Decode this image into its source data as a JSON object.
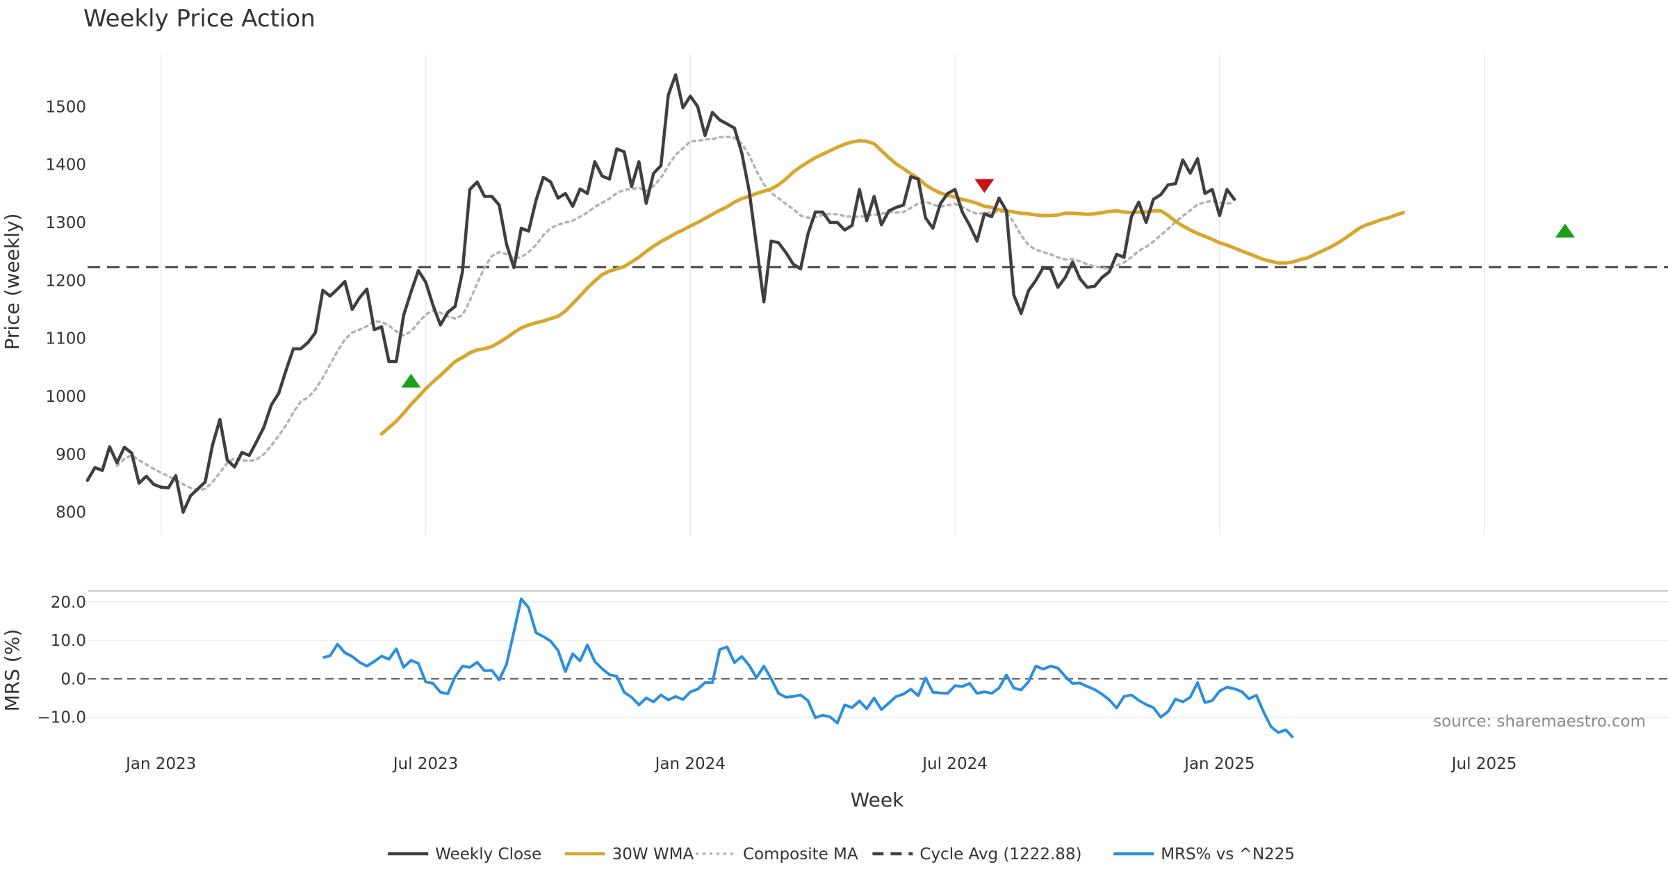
{
  "chart_data": {
    "type": "line",
    "title": "Weekly Price Action",
    "source_note": "source: sharemaestro.com",
    "xlabel": "Week",
    "x_ticks": [
      "Jan 2023",
      "Jul 2023",
      "Jan 2024",
      "Jul 2024",
      "Jan 2025",
      "Jul 2025"
    ],
    "x_tick_weeks": [
      10,
      46,
      82,
      118,
      154,
      190
    ],
    "n_weeks": 216,
    "price_panel": {
      "ylabel": "Price (weekly)",
      "ylim": [
        760,
        1600
      ],
      "yticks": [
        800,
        900,
        1000,
        1100,
        1200,
        1300,
        1400,
        1500
      ],
      "grid": true,
      "series": [
        {
          "name": "Weekly Close",
          "color": "#3f3f3f",
          "start_week": 0,
          "values": [
            855,
            877,
            872,
            913,
            885,
            912,
            902,
            850,
            862,
            848,
            843,
            842,
            863,
            800,
            828,
            840,
            852,
            916,
            960,
            890,
            878,
            903,
            898,
            922,
            947,
            985,
            1005,
            1045,
            1082,
            1082,
            1093,
            1110,
            1183,
            1173,
            1185,
            1198,
            1150,
            1170,
            1185,
            1115,
            1120,
            1060,
            1060,
            1140,
            1180,
            1217,
            1197,
            1157,
            1123,
            1145,
            1155,
            1215,
            1357,
            1370,
            1345,
            1345,
            1330,
            1262,
            1222,
            1290,
            1285,
            1338,
            1378,
            1370,
            1342,
            1350,
            1328,
            1358,
            1350,
            1405,
            1380,
            1375,
            1427,
            1422,
            1362,
            1405,
            1333,
            1385,
            1398,
            1520,
            1555,
            1498,
            1518,
            1500,
            1450,
            1490,
            1477,
            1470,
            1463,
            1420,
            1355,
            1260,
            1163,
            1268,
            1265,
            1248,
            1228,
            1220,
            1280,
            1318,
            1318,
            1300,
            1300,
            1287,
            1295,
            1357,
            1303,
            1345,
            1296,
            1320,
            1326,
            1330,
            1379,
            1375,
            1308,
            1290,
            1332,
            1350,
            1357,
            1318,
            1295,
            1268,
            1315,
            1310,
            1342,
            1320,
            1175,
            1143,
            1182,
            1200,
            1222,
            1220,
            1188,
            1205,
            1232,
            1203,
            1188,
            1190,
            1205,
            1215,
            1245,
            1240,
            1310,
            1335,
            1300,
            1340,
            1348,
            1365,
            1367,
            1408,
            1385,
            1410,
            1350,
            1357,
            1312,
            1357,
            1340
          ]
        },
        {
          "name": "30W WMA",
          "color": "#d9a52c",
          "start_week": 40,
          "values": [
            935,
            946,
            957,
            971,
            986,
            999,
            1013,
            1025,
            1036,
            1048,
            1060,
            1067,
            1075,
            1080,
            1082,
            1086,
            1093,
            1101,
            1110,
            1118,
            1123,
            1127,
            1130,
            1134,
            1138,
            1147,
            1160,
            1173,
            1187,
            1199,
            1210,
            1216,
            1220,
            1224,
            1232,
            1240,
            1250,
            1259,
            1267,
            1274,
            1281,
            1287,
            1294,
            1300,
            1307,
            1314,
            1321,
            1327,
            1335,
            1341,
            1345,
            1350,
            1354,
            1358,
            1365,
            1375,
            1387,
            1396,
            1404,
            1412,
            1418,
            1424,
            1430,
            1435,
            1439,
            1441,
            1440,
            1436,
            1424,
            1412,
            1401,
            1393,
            1384,
            1376,
            1365,
            1357,
            1351,
            1347,
            1344,
            1340,
            1337,
            1333,
            1328,
            1326,
            1322,
            1320,
            1318,
            1316,
            1315,
            1313,
            1312,
            1312,
            1313,
            1316,
            1316,
            1315,
            1314,
            1315,
            1317,
            1319,
            1320,
            1318,
            1317,
            1318,
            1318,
            1320,
            1320,
            1312,
            1302,
            1294,
            1287,
            1281,
            1276,
            1271,
            1265,
            1261,
            1256,
            1251,
            1246,
            1241,
            1236,
            1233,
            1230,
            1230,
            1232,
            1236,
            1239,
            1245,
            1251,
            1257,
            1264,
            1272,
            1281,
            1290,
            1296,
            1300,
            1305,
            1308,
            1313,
            1317
          ]
        },
        {
          "name": "Composite MA",
          "color": "#b3b3b3",
          "start_week": 0,
          "values": [
            null,
            null,
            null,
            null,
            880,
            892,
            898,
            890,
            882,
            875,
            868,
            862,
            855,
            848,
            842,
            838,
            840,
            852,
            868,
            885,
            893,
            890,
            888,
            891,
            900,
            915,
            932,
            950,
            972,
            991,
            998,
            1012,
            1032,
            1055,
            1078,
            1098,
            1110,
            1115,
            1121,
            1130,
            1128,
            1122,
            1112,
            1105,
            1112,
            1127,
            1141,
            1148,
            1144,
            1138,
            1134,
            1140,
            1165,
            1195,
            1222,
            1242,
            1249,
            1245,
            1238,
            1240,
            1249,
            1261,
            1278,
            1290,
            1296,
            1300,
            1303,
            1310,
            1317,
            1327,
            1334,
            1341,
            1351,
            1356,
            1358,
            1360,
            1354,
            1363,
            1377,
            1398,
            1417,
            1428,
            1440,
            1441,
            1443,
            1444,
            1447,
            1448,
            1446,
            1436,
            1416,
            1389,
            1366,
            1351,
            1342,
            1332,
            1323,
            1312,
            1308,
            1309,
            1313,
            1315,
            1314,
            1311,
            1310,
            1310,
            1312,
            1313,
            1315,
            1318,
            1317,
            1318,
            1325,
            1333,
            1336,
            1331,
            1327,
            1330,
            1332,
            1327,
            1320,
            1315,
            1316,
            1317,
            1319,
            1318,
            1300,
            1278,
            1261,
            1253,
            1249,
            1245,
            1240,
            1236,
            1237,
            1233,
            1228,
            1224,
            1222,
            1220,
            1226,
            1231,
            1240,
            1251,
            1258,
            1267,
            1278,
            1289,
            1301,
            1311,
            1321,
            1331,
            1335,
            1337,
            1334,
            1333,
            1333
          ]
        },
        {
          "name": "Cycle Avg (1222.88)",
          "color": "#444444",
          "type": "hline",
          "value": 1222.88
        }
      ],
      "markers": [
        {
          "type": "buy",
          "week": 44,
          "value": 1027,
          "color": "#1ba01b"
        },
        {
          "type": "sell",
          "week": 122,
          "value": 1363,
          "color": "#cc1111"
        },
        {
          "type": "buy",
          "week": 201,
          "value": 1286,
          "color": "#1ba01b"
        }
      ]
    },
    "mrs_panel": {
      "ylabel": "MRS (%)",
      "ylim": [
        -15.5,
        22.5
      ],
      "yticks": [
        -10,
        0,
        10,
        20
      ],
      "ytick_labels": [
        "−10.0",
        "0.0",
        "10.0",
        "20.0"
      ],
      "zero_line": true,
      "series": [
        {
          "name": "MRS% vs ^N225",
          "color": "#2b8ee0",
          "start_week": 32,
          "values": [
            5.5,
            6.0,
            9.0,
            6.8,
            5.8,
            4.3,
            3.3,
            4.5,
            5.9,
            5.1,
            7.8,
            3.0,
            4.8,
            4.0,
            -0.8,
            -1.2,
            -3.5,
            -3.9,
            0.5,
            3.3,
            3.0,
            4.3,
            2.1,
            2.2,
            -0.3,
            3.8,
            12.3,
            20.8,
            18.5,
            12.0,
            11.0,
            9.8,
            7.4,
            1.9,
            6.5,
            4.7,
            8.8,
            4.5,
            2.6,
            1.1,
            0.6,
            -3.5,
            -4.8,
            -6.8,
            -5.0,
            -6.0,
            -4.2,
            -5.5,
            -4.6,
            -5.4,
            -3.4,
            -2.7,
            -1.0,
            -1.0,
            7.6,
            8.3,
            4.2,
            5.8,
            3.5,
            0.3,
            3.3,
            0.0,
            -3.8,
            -4.8,
            -4.6,
            -4.2,
            -5.7,
            -10.1,
            -9.5,
            -9.9,
            -11.5,
            -6.8,
            -7.5,
            -5.8,
            -7.8,
            -5.0,
            -8.0,
            -6.3,
            -4.6,
            -4.0,
            -2.7,
            -4.4,
            0.2,
            -3.5,
            -3.7,
            -3.8,
            -1.8,
            -2.0,
            -1.2,
            -3.8,
            -3.4,
            -3.8,
            -2.4,
            1.0,
            -2.4,
            -2.9,
            -0.8,
            3.3,
            2.5,
            3.3,
            2.8,
            0.6,
            -1.2,
            -1.1,
            -2.0,
            -2.8,
            -4.0,
            -5.5,
            -7.6,
            -4.6,
            -4.2,
            -5.6,
            -6.7,
            -7.5,
            -10.0,
            -8.5,
            -5.3,
            -6.0,
            -4.8,
            -1.0,
            -6.2,
            -5.7,
            -3.2,
            -2.2,
            -2.6,
            -3.3,
            -5.2,
            -4.3,
            -8.7,
            -12.5,
            -14.0,
            -13.3,
            -15.3
          ]
        }
      ]
    },
    "legend": {
      "position": "bottom-center",
      "entries": [
        {
          "label": "Weekly Close",
          "color": "#3f3f3f",
          "style": "solid"
        },
        {
          "label": "30W WMA",
          "color": "#d9a52c",
          "style": "solid"
        },
        {
          "label": "Composite MA",
          "color": "#b3b3b3",
          "style": "dotted"
        },
        {
          "label": "Cycle Avg (1222.88)",
          "color": "#444444",
          "style": "dashed"
        },
        {
          "label": "MRS% vs ^N225",
          "color": "#2b8ee0",
          "style": "solid"
        }
      ]
    }
  }
}
